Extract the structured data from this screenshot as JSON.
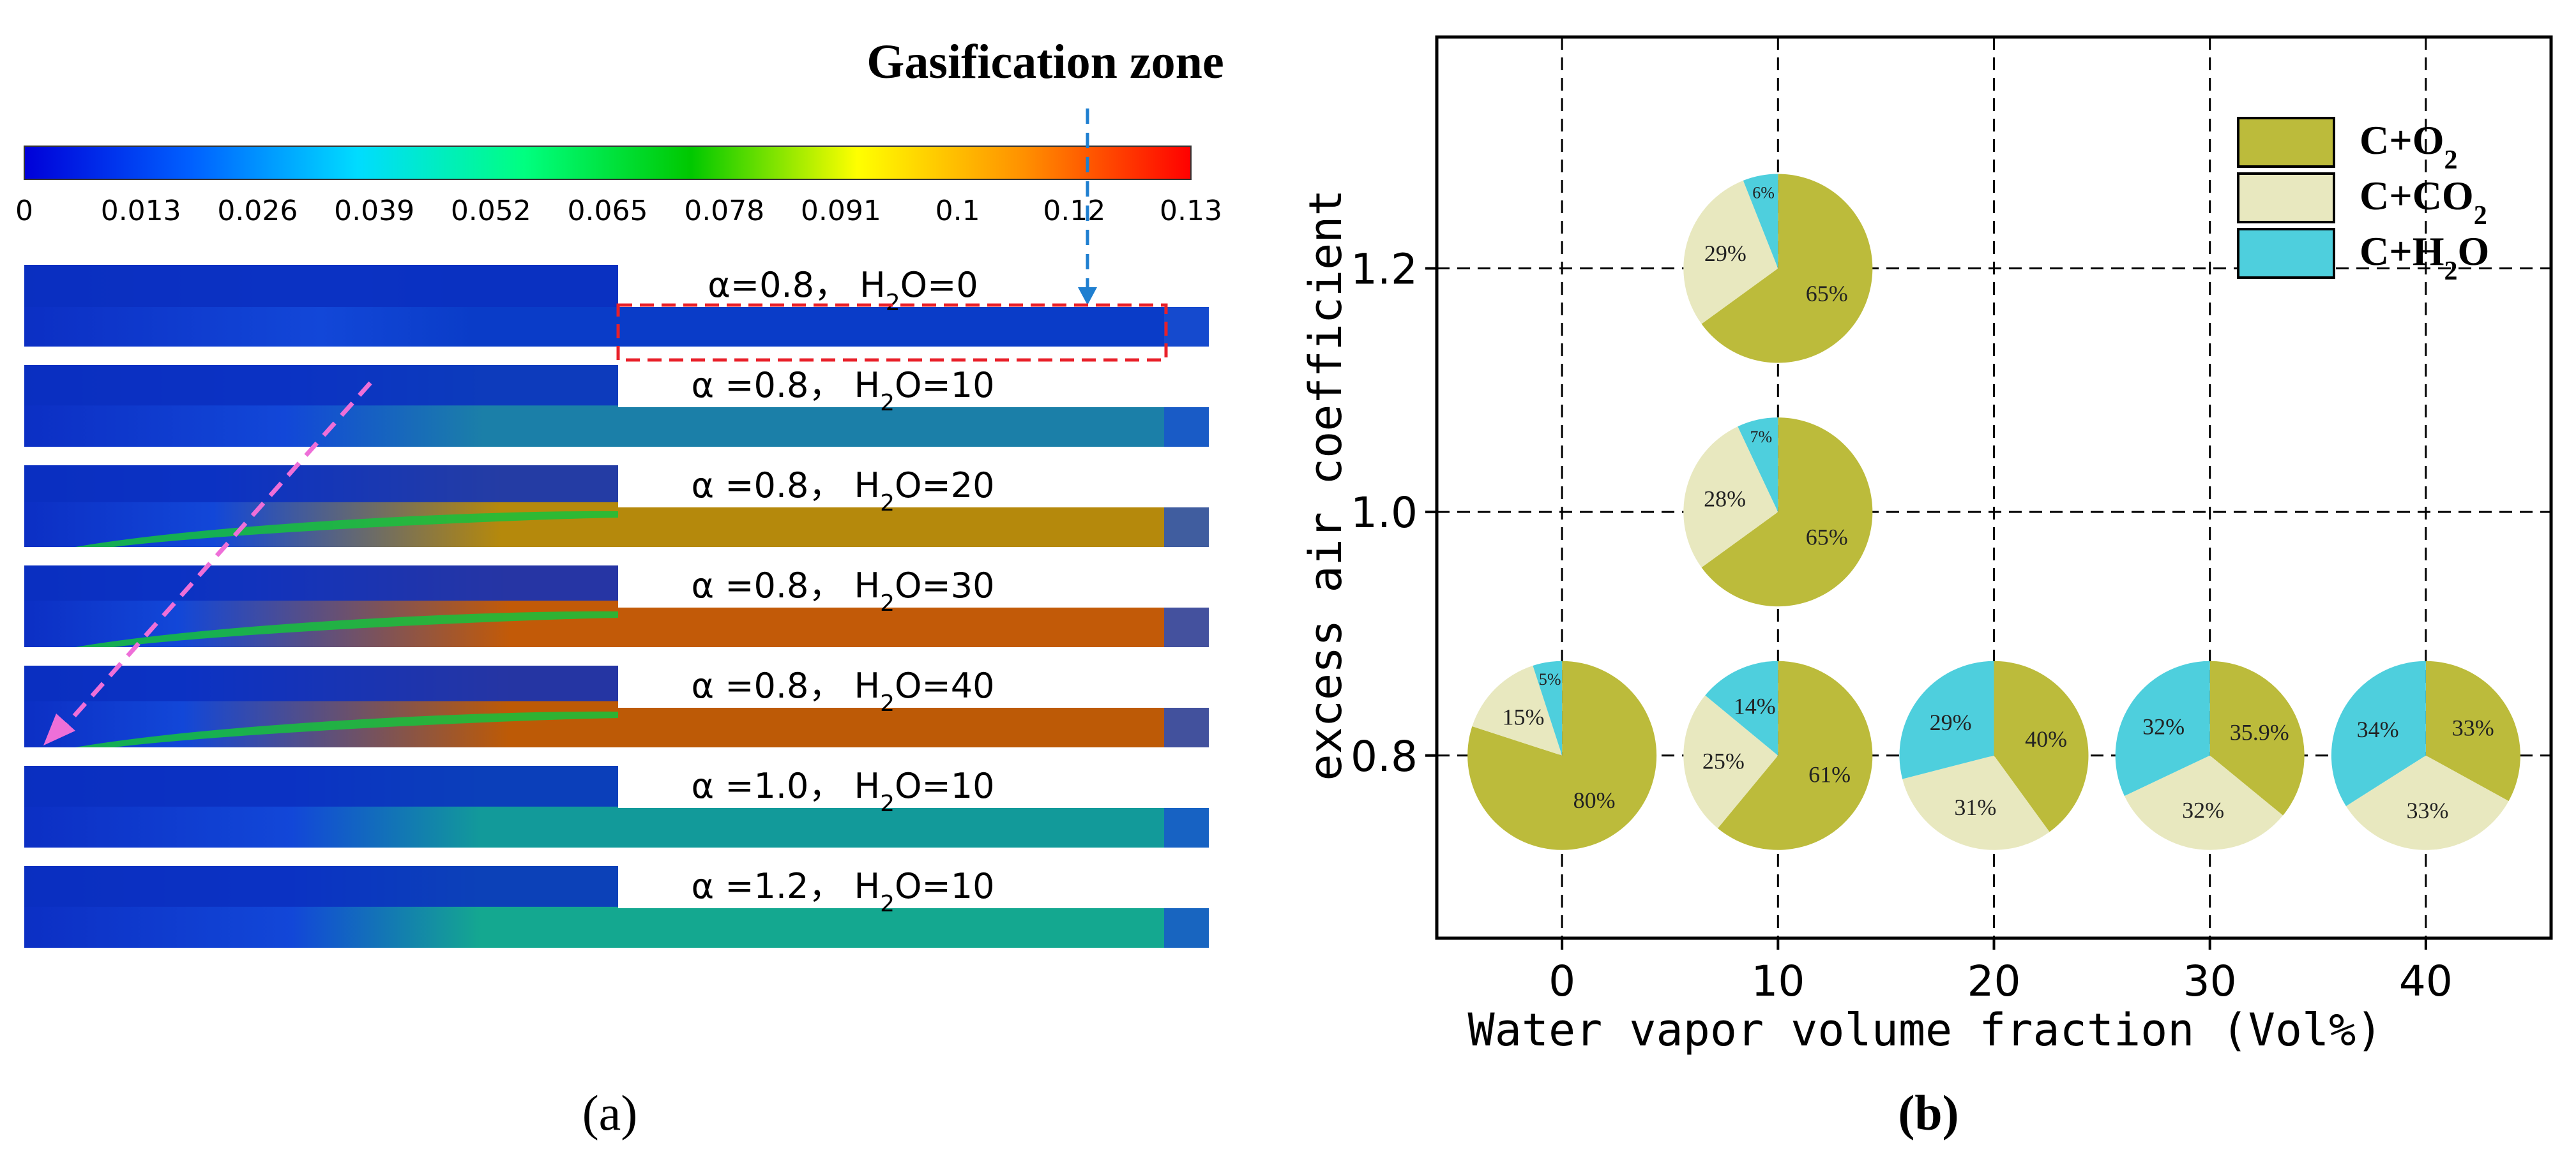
{
  "panel_a": {
    "title": "Gasification zone",
    "caption": "(a)",
    "colorbar": {
      "ticks": [
        "0",
        "0.013",
        "0.026",
        "0.039",
        "0.052",
        "0.065",
        "0.078",
        "0.091",
        "0.1",
        "0.12",
        "0.13"
      ],
      "colors": [
        "#0000d8",
        "#0060ff",
        "#00dcff",
        "#00ff80",
        "#00c800",
        "#ffff00",
        "#ff9000",
        "#ff0000"
      ]
    },
    "contours": [
      {
        "alpha": "0.8",
        "h2o": "0",
        "gas_color": "#0a3cc8",
        "front": 0.0
      },
      {
        "alpha": "0.8",
        "h2o": "10",
        "gas_color": "#1b7fa8",
        "front": 0.15
      },
      {
        "alpha": "0.8",
        "h2o": "20",
        "gas_color": "#b5890c",
        "front": 0.45
      },
      {
        "alpha": "0.8",
        "h2o": "30",
        "gas_color": "#c25a08",
        "front": 0.6
      },
      {
        "alpha": "0.8",
        "h2o": "40",
        "gas_color": "#bd5a06",
        "front": 0.58
      },
      {
        "alpha": "1.0",
        "h2o": "10",
        "gas_color": "#129a9a",
        "front": 0.12
      },
      {
        "alpha": "1.2",
        "h2o": "10",
        "gas_color": "#14a890",
        "front": 0.12
      }
    ]
  },
  "chart_data": {
    "type": "pie",
    "title": "",
    "xlabel": "Water vapor volume fraction (Vol%)",
    "ylabel": "excess air coefficient",
    "caption": "(b)",
    "xlim": [
      -5.8,
      45.8
    ],
    "ylim": [
      0.65,
      1.39
    ],
    "x_ticks": [
      "0",
      "10",
      "20",
      "30",
      "40"
    ],
    "y_ticks": [
      "0.8",
      "1.0",
      "1.2"
    ],
    "grid": true,
    "legend_position": "top-right",
    "legend": [
      {
        "key": "o2",
        "label": "C+O",
        "sub": "2",
        "color": "#bcbb3b"
      },
      {
        "key": "co2",
        "label": "C+CO",
        "sub": "2",
        "color": "#e8e8bf"
      },
      {
        "key": "h2o",
        "label": "C+H",
        "sub": "2",
        "suffix": "O",
        "color": "#4ecfdd"
      }
    ],
    "pies": [
      {
        "x": 0,
        "y": 0.8,
        "slices": [
          {
            "series": "o2",
            "value": 80,
            "label": "80%"
          },
          {
            "series": "co2",
            "value": 15,
            "label": "15%"
          },
          {
            "series": "h2o",
            "value": 5,
            "label": "5%"
          }
        ]
      },
      {
        "x": 10,
        "y": 0.8,
        "slices": [
          {
            "series": "o2",
            "value": 61,
            "label": "61%"
          },
          {
            "series": "co2",
            "value": 25,
            "label": "25%"
          },
          {
            "series": "h2o",
            "value": 14,
            "label": "14%"
          }
        ]
      },
      {
        "x": 20,
        "y": 0.8,
        "slices": [
          {
            "series": "o2",
            "value": 40,
            "label": "40%"
          },
          {
            "series": "co2",
            "value": 31,
            "label": "31%"
          },
          {
            "series": "h2o",
            "value": 29,
            "label": "29%"
          }
        ]
      },
      {
        "x": 30,
        "y": 0.8,
        "slices": [
          {
            "series": "o2",
            "value": 35.9,
            "label": "35.9%"
          },
          {
            "series": "co2",
            "value": 32,
            "label": "32%"
          },
          {
            "series": "h2o",
            "value": 32,
            "label": "32%"
          }
        ]
      },
      {
        "x": 40,
        "y": 0.8,
        "slices": [
          {
            "series": "o2",
            "value": 33,
            "label": "33%"
          },
          {
            "series": "co2",
            "value": 33,
            "label": "33%"
          },
          {
            "series": "h2o",
            "value": 34,
            "label": "34%"
          }
        ]
      },
      {
        "x": 10,
        "y": 1.0,
        "slices": [
          {
            "series": "o2",
            "value": 65,
            "label": "65%"
          },
          {
            "series": "co2",
            "value": 28,
            "label": "28%"
          },
          {
            "series": "h2o",
            "value": 7,
            "label": "7%"
          }
        ]
      },
      {
        "x": 10,
        "y": 1.2,
        "slices": [
          {
            "series": "o2",
            "value": 65,
            "label": "65%"
          },
          {
            "series": "co2",
            "value": 29,
            "label": "29%"
          },
          {
            "series": "h2o",
            "value": 6,
            "label": "6%"
          }
        ]
      }
    ]
  }
}
